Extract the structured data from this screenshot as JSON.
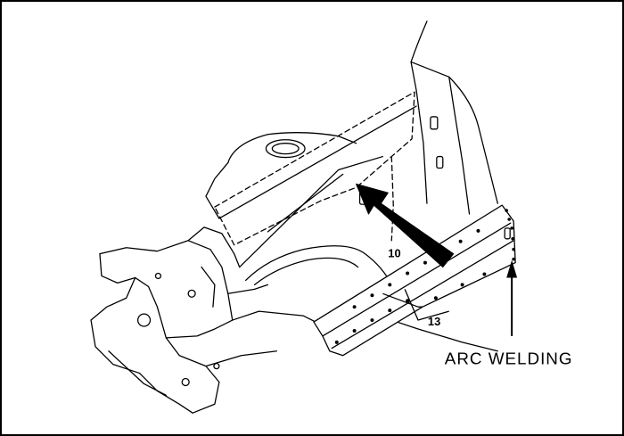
{
  "labels": {
    "part_10": "10",
    "part_13": "13",
    "callout": "ARC WELDING"
  },
  "colors": {
    "line": "#000000",
    "background": "#ffffff"
  }
}
